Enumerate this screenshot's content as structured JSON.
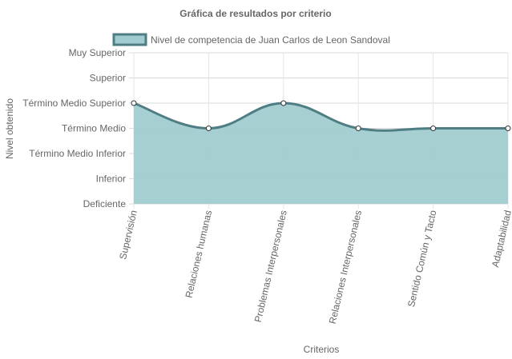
{
  "chart_data": {
    "type": "area",
    "title": "Gráfica de resultados por criterio",
    "xlabel": "Criterios",
    "ylabel": "Nivel obtenido",
    "categories": [
      "Supervisión",
      "Relaciones humanas",
      "Problemas Interpersonales",
      "Relaciones Interpersonales",
      "Sentido Común y Tacto",
      "Adaptabilidad"
    ],
    "y_levels": [
      "Deficiente",
      "Inferior",
      "Término Medio Inferior",
      "Término Medio",
      "Término Medio Superior",
      "Superior",
      "Muy Superior"
    ],
    "series": [
      {
        "name": "Nivel de competencia de Juan Carlos de Leon Sandoval",
        "values": [
          5,
          4,
          5,
          4,
          4,
          4
        ]
      }
    ],
    "ylim": [
      1,
      7
    ],
    "grid": true,
    "legend_position": "top",
    "colors": {
      "fill": "#a0cccf",
      "line": "#4f7d84",
      "grid": "#e6e6e6",
      "point_fill": "#ffffff",
      "point_stroke": "#333333"
    }
  }
}
